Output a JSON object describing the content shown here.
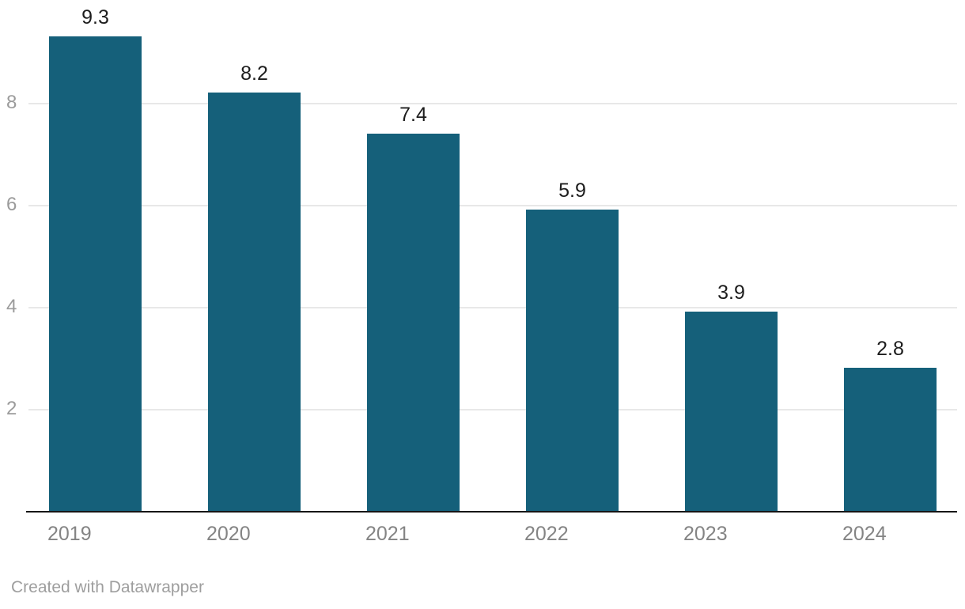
{
  "chart_data": {
    "type": "bar",
    "categories": [
      "2019",
      "2020",
      "2021",
      "2022",
      "2023",
      "2024"
    ],
    "values": [
      9.3,
      8.2,
      7.4,
      5.9,
      3.9,
      2.8
    ],
    "data_labels": [
      "9.3",
      "8.2",
      "7.4",
      "5.9",
      "3.9",
      "2.8"
    ],
    "title": "",
    "xlabel": "",
    "ylabel": "",
    "ylim": [
      0,
      9.3
    ],
    "yticks": [
      2,
      4,
      6,
      8
    ],
    "grid": "horizontal",
    "legend_position": "none",
    "bar_color": "#15607a",
    "value_label_color": "#1d1d1d",
    "x_tick_color": "#848484",
    "y_tick_color": "#9b9b9b",
    "gridline_color": "#e8e8e8",
    "baseline_color": "#161616",
    "background_color": "#ffffff"
  },
  "footer": {
    "credit": "Created with Datawrapper"
  }
}
